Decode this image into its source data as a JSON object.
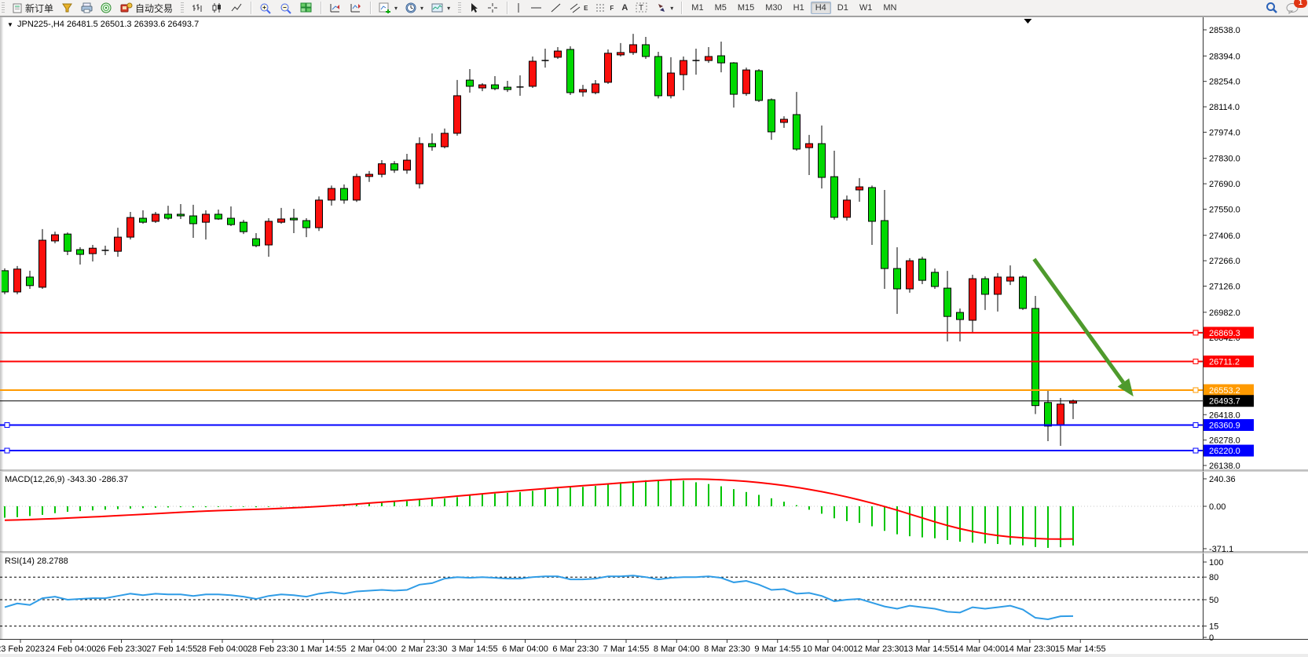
{
  "toolbar": {
    "new_order": "新订单",
    "auto_trading": "自动交易",
    "letters": {
      "text": "A",
      "label": "T",
      "channel": "E",
      "fibo": "F"
    },
    "timeframes": [
      "M1",
      "M5",
      "M15",
      "M30",
      "H1",
      "H4",
      "D1",
      "W1",
      "MN"
    ],
    "active_timeframe": "H4",
    "notification_count": "1"
  },
  "chart": {
    "title": {
      "dropdown": "▼",
      "symbol_period": "JPN225-,H4",
      "ohlc_text": "26481.5 26501.3 26393.6 26493.7"
    },
    "colors": {
      "bull": "#fb0f0c",
      "bear": "#00d800",
      "outline": "#000000",
      "arrow": "#4e9a2c",
      "red_line": "#ff0000",
      "orange_line": "#ff9a00",
      "blue_line": "#0000ff",
      "black_line": "#000000",
      "macd_hist": "#00c400",
      "macd_signal": "#ff0000",
      "rsi_line": "#2f9ce6"
    },
    "price_axis_labels": [
      "28538.0",
      "28394.0",
      "28254.0",
      "28114.0",
      "27974.0",
      "27830.0",
      "27690.0",
      "27550.0",
      "27406.0",
      "27266.0",
      "27126.0",
      "26982.0",
      "26842.0",
      "26418.0",
      "26278.0",
      "26138.0"
    ],
    "time_axis_labels": [
      "23 Feb 2023",
      "24 Feb 04:00",
      "26 Feb 23:30",
      "27 Feb 14:55",
      "28 Feb 04:00",
      "28 Feb 23:30",
      "1 Mar 14:55",
      "2 Mar 04:00",
      "2 Mar 23:30",
      "3 Mar 14:55",
      "6 Mar 04:00",
      "6 Mar 23:30",
      "7 Mar 14:55",
      "8 Mar 04:00",
      "8 Mar 23:30",
      "9 Mar 14:55",
      "10 Mar 04:00",
      "12 Mar 23:30",
      "13 Mar 14:55",
      "14 Mar 04:00",
      "14 Mar 23:30",
      "15 Mar 14:55"
    ],
    "hlines": [
      {
        "price": 26869.3,
        "label": "26869.3",
        "color": "#ff0000",
        "width": 2
      },
      {
        "price": 26711.2,
        "label": "26711.2",
        "color": "#ff0000",
        "width": 2
      },
      {
        "price": 26553.2,
        "label": "26553.2",
        "color": "#ff9a00",
        "width": 2
      },
      {
        "price": 26360.9,
        "label": "26360.9",
        "color": "#0000ff",
        "width": 2,
        "left_handle": true
      },
      {
        "price": 26220.0,
        "label": "26220.0",
        "color": "#0000ff",
        "width": 2,
        "left_handle": true
      }
    ],
    "current_price": {
      "value": 26493.7,
      "label": "26493.7",
      "color": "#000000"
    },
    "trend_arrow": {
      "from_bar": 81.9,
      "from_price": 27275,
      "to_bar": 89.8,
      "to_price": 26518
    },
    "shift_marker_bar": 81.4
  },
  "chart_data": {
    "type": "candlestick",
    "symbol": "JPN225-",
    "period": "H4",
    "last_ohlc": {
      "open": 26481.5,
      "high": 26501.3,
      "low": 26393.6,
      "close": 26493.7
    },
    "candles": [
      [
        27211,
        27224,
        27081,
        27094
      ],
      [
        27094,
        27237,
        27081,
        27220
      ],
      [
        27176,
        27211,
        27111,
        27129
      ],
      [
        27120,
        27440,
        27111,
        27379
      ],
      [
        27375,
        27426,
        27362,
        27409
      ],
      [
        27413,
        27422,
        27297,
        27318
      ],
      [
        27327,
        27340,
        27245,
        27301
      ],
      [
        27305,
        27353,
        27262,
        27335
      ],
      [
        27323,
        27349,
        27297,
        27323
      ],
      [
        27318,
        27448,
        27288,
        27396
      ],
      [
        27396,
        27535,
        27383,
        27504
      ],
      [
        27500,
        27544,
        27470,
        27478
      ],
      [
        27483,
        27535,
        27474,
        27522
      ],
      [
        27522,
        27569,
        27491,
        27500
      ],
      [
        27522,
        27578,
        27496,
        27513
      ],
      [
        27513,
        27574,
        27392,
        27470
      ],
      [
        27478,
        27544,
        27383,
        27522
      ],
      [
        27522,
        27548,
        27491,
        27496
      ],
      [
        27500,
        27565,
        27457,
        27465
      ],
      [
        27478,
        27491,
        27413,
        27426
      ],
      [
        27387,
        27418,
        27340,
        27349
      ],
      [
        27353,
        27500,
        27288,
        27483
      ],
      [
        27478,
        27557,
        27470,
        27496
      ],
      [
        27500,
        27552,
        27418,
        27491
      ],
      [
        27487,
        27500,
        27396,
        27448
      ],
      [
        27448,
        27620,
        27430,
        27600
      ],
      [
        27600,
        27680,
        27570,
        27664
      ],
      [
        27664,
        27686,
        27580,
        27600
      ],
      [
        27600,
        27745,
        27590,
        27730
      ],
      [
        27730,
        27760,
        27700,
        27742
      ],
      [
        27742,
        27820,
        27725,
        27800
      ],
      [
        27800,
        27815,
        27750,
        27765
      ],
      [
        27765,
        27855,
        27745,
        27820
      ],
      [
        27690,
        27946,
        27664,
        27911
      ],
      [
        27911,
        27967,
        27872,
        27894
      ],
      [
        27894,
        27994,
        27885,
        27968
      ],
      [
        27968,
        28262,
        27955,
        28175
      ],
      [
        28261,
        28322,
        28192,
        28227
      ],
      [
        28218,
        28244,
        28200,
        28235
      ],
      [
        28235,
        28283,
        28205,
        28214
      ],
      [
        28222,
        28257,
        28196,
        28209
      ],
      [
        28223,
        28287,
        28175,
        28223
      ],
      [
        28227,
        28391,
        28218,
        28365
      ],
      [
        28369,
        28434,
        28330,
        28369
      ],
      [
        28387,
        28443,
        28378,
        28421
      ],
      [
        28430,
        28447,
        28179,
        28192
      ],
      [
        28196,
        28235,
        28170,
        28209
      ],
      [
        28192,
        28261,
        28183,
        28240
      ],
      [
        28249,
        28430,
        28240,
        28409
      ],
      [
        28400,
        28465,
        28391,
        28413
      ],
      [
        28413,
        28516,
        28400,
        28456
      ],
      [
        28456,
        28499,
        28378,
        28391
      ],
      [
        28391,
        28417,
        28160,
        28175
      ],
      [
        28175,
        28387,
        28160,
        28300
      ],
      [
        28291,
        28391,
        28205,
        28369
      ],
      [
        28369,
        28434,
        28291,
        28369
      ],
      [
        28369,
        28443,
        28356,
        28391
      ],
      [
        28395,
        28473,
        28304,
        28356
      ],
      [
        28356,
        28360,
        28110,
        28183
      ],
      [
        28187,
        28330,
        28175,
        28317
      ],
      [
        28313,
        28322,
        28140,
        28149
      ],
      [
        28153,
        28160,
        27932,
        27976
      ],
      [
        28028,
        28062,
        27998,
        28045
      ],
      [
        28071,
        28196,
        27872,
        27881
      ],
      [
        27889,
        27959,
        27738,
        27911
      ],
      [
        27911,
        28011,
        27664,
        27725
      ],
      [
        27729,
        27872,
        27492,
        27505
      ],
      [
        27505,
        27625,
        27487,
        27600
      ],
      [
        27656,
        27721,
        27591,
        27673
      ],
      [
        27669,
        27680,
        27353,
        27483
      ],
      [
        27487,
        27656,
        27111,
        27223
      ],
      [
        27223,
        27340,
        26973,
        27111
      ],
      [
        27111,
        27280,
        27090,
        27266
      ],
      [
        27275,
        27288,
        27137,
        27158
      ],
      [
        27202,
        27223,
        27111,
        27124
      ],
      [
        27115,
        27210,
        26821,
        26959
      ],
      [
        26981,
        27003,
        26821,
        26942
      ],
      [
        26938,
        27189,
        26872,
        27167
      ],
      [
        27167,
        27180,
        26995,
        27081
      ],
      [
        27081,
        27198,
        26986,
        27176
      ],
      [
        27154,
        27240,
        27132,
        27176
      ],
      [
        27176,
        27185,
        26995,
        27003
      ],
      [
        27003,
        27072,
        26421,
        26468
      ],
      [
        26485,
        26553,
        26272,
        26355
      ],
      [
        26359,
        26510,
        26246,
        26476
      ],
      [
        26481.5,
        26501.3,
        26393.6,
        26493.7
      ]
    ]
  },
  "macd": {
    "label": "MACD(12,26,9)",
    "values_text": "-343.30 -286.37",
    "axis_labels": [
      "240.36",
      "0.00",
      "-371.1"
    ],
    "hist": [
      -100,
      -95,
      -85,
      -75,
      -60,
      -48,
      -42,
      -36,
      -30,
      -25,
      -20,
      -16,
      -13,
      -10,
      -8,
      -10,
      -8,
      -6,
      -5,
      -5,
      -8,
      -5,
      -3,
      -2,
      -2,
      2,
      6,
      12,
      18,
      25,
      32,
      38,
      45,
      55,
      62,
      68,
      80,
      95,
      105,
      112,
      118,
      125,
      135,
      148,
      158,
      165,
      170,
      178,
      190,
      205,
      218,
      228,
      232,
      235,
      225,
      210,
      195,
      175,
      150,
      125,
      100,
      70,
      40,
      10,
      -30,
      -65,
      -105,
      -130,
      -145,
      -175,
      -215,
      -245,
      -262,
      -272,
      -280,
      -295,
      -310,
      -318,
      -325,
      -330,
      -335,
      -342,
      -356,
      -364,
      -358,
      -343.3
    ],
    "signal": [
      -122,
      -119,
      -116,
      -112,
      -108,
      -103,
      -98,
      -93,
      -88,
      -82,
      -76,
      -70,
      -64,
      -58,
      -52,
      -47,
      -42,
      -38,
      -34,
      -30,
      -27,
      -23,
      -18,
      -13,
      -8,
      -2,
      5,
      12,
      20,
      28,
      36,
      44,
      52,
      61,
      70,
      79,
      89,
      99,
      109,
      119,
      128,
      137,
      146,
      155,
      164,
      172,
      180,
      188,
      196,
      204,
      212,
      220,
      227,
      233,
      237,
      238,
      236,
      232,
      226,
      218,
      208,
      196,
      182,
      166,
      148,
      128,
      106,
      82,
      56,
      28,
      -2,
      -34,
      -68,
      -102,
      -136,
      -168,
      -196,
      -220,
      -240,
      -256,
      -268,
      -276,
      -282,
      -286,
      -287,
      -286.37
    ]
  },
  "rsi": {
    "label": "RSI(14)",
    "value_text": "28.2788",
    "axis_labels": [
      "100",
      "80",
      "50",
      "15",
      "0"
    ],
    "axis_values": [
      100,
      80,
      50,
      15,
      0
    ],
    "levels": [
      80,
      50,
      15
    ],
    "values": [
      40,
      45,
      43,
      52,
      54,
      50,
      51,
      52,
      52,
      55,
      58,
      56,
      58,
      57,
      57,
      55,
      57,
      57,
      56,
      54,
      51,
      55,
      57,
      56,
      54,
      58,
      60,
      58,
      61,
      62,
      63,
      62,
      63,
      70,
      72,
      78,
      80,
      79,
      80,
      79,
      78,
      78,
      80,
      81,
      81,
      77,
      77,
      78,
      81,
      81,
      82,
      80,
      77,
      79,
      80,
      80,
      81,
      79,
      73,
      75,
      70,
      63,
      64,
      58,
      59,
      55,
      48,
      50,
      51,
      46,
      41,
      38,
      42,
      40,
      38,
      34,
      33,
      40,
      38,
      40,
      42,
      37,
      26,
      24,
      28,
      28.28
    ]
  }
}
